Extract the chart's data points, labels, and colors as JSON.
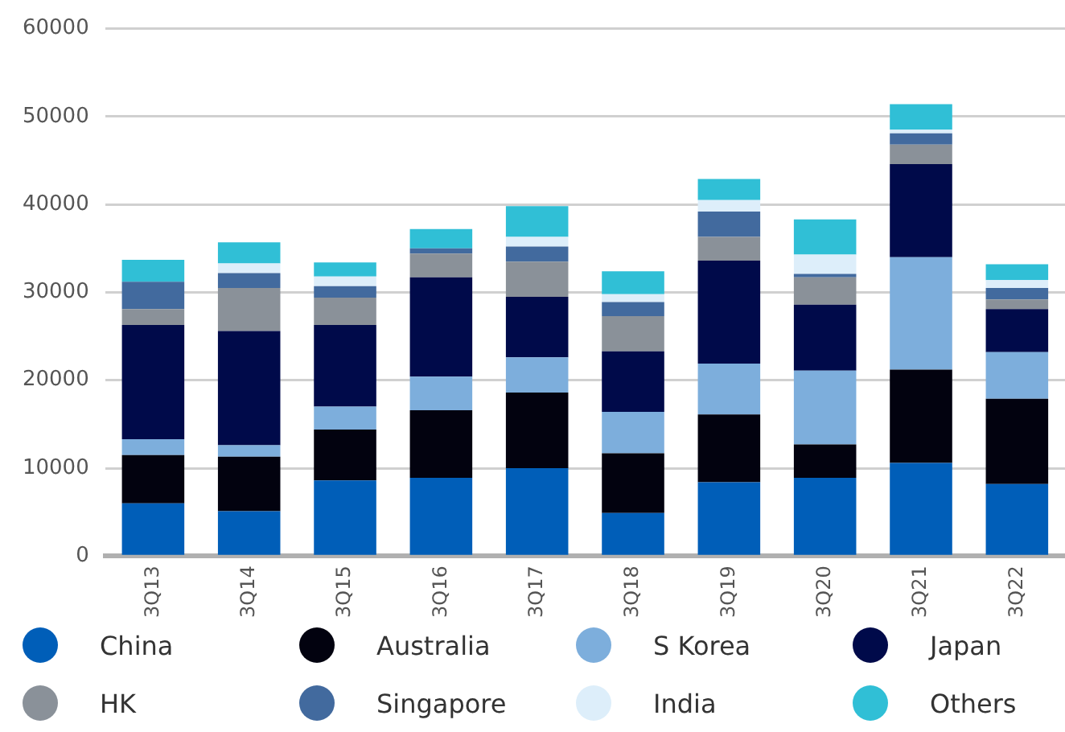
{
  "chart_data": {
    "type": "bar",
    "stacked": true,
    "categories": [
      "3Q13",
      "3Q14",
      "3Q15",
      "3Q16",
      "3Q17",
      "3Q18",
      "3Q19",
      "3Q20",
      "3Q21",
      "3Q22"
    ],
    "series": [
      {
        "name": "China",
        "color": "#005eb8",
        "values": [
          6000,
          5100,
          8600,
          8900,
          10000,
          4900,
          8400,
          8900,
          10600,
          8200
        ]
      },
      {
        "name": "Australia",
        "color": "#02020f",
        "values": [
          5500,
          6200,
          5800,
          7700,
          8600,
          6800,
          7700,
          3800,
          10600,
          9700
        ]
      },
      {
        "name": "S Korea",
        "color": "#7daedc",
        "values": [
          1800,
          1300,
          2600,
          3800,
          4000,
          4700,
          5800,
          8400,
          12800,
          5300
        ]
      },
      {
        "name": "Japan",
        "color": "#000a4a",
        "values": [
          13000,
          13000,
          9300,
          11300,
          6900,
          6900,
          11700,
          7500,
          10600,
          4900
        ]
      },
      {
        "name": "HK",
        "color": "#8a9199",
        "values": [
          1800,
          4900,
          3100,
          2700,
          4000,
          4000,
          2700,
          3100,
          2200,
          1100
        ]
      },
      {
        "name": "Singapore",
        "color": "#426a9e",
        "values": [
          3100,
          1700,
          1300,
          600,
          1700,
          1600,
          2900,
          400,
          1300,
          1300
        ]
      },
      {
        "name": "India",
        "color": "#ddeefa",
        "values": [
          null,
          1100,
          1100,
          0,
          1100,
          900,
          1300,
          2200,
          400,
          900
        ]
      },
      {
        "name": "Others",
        "color": "#30bfd6",
        "values": [
          2500,
          2400,
          1600,
          2200,
          3500,
          2600,
          2400,
          4000,
          2900,
          1800
        ]
      }
    ],
    "ylim": [
      0,
      60000
    ],
    "yticks": [
      0,
      10000,
      20000,
      30000,
      40000,
      50000,
      60000
    ],
    "grid": "y",
    "legend": "bottom"
  }
}
